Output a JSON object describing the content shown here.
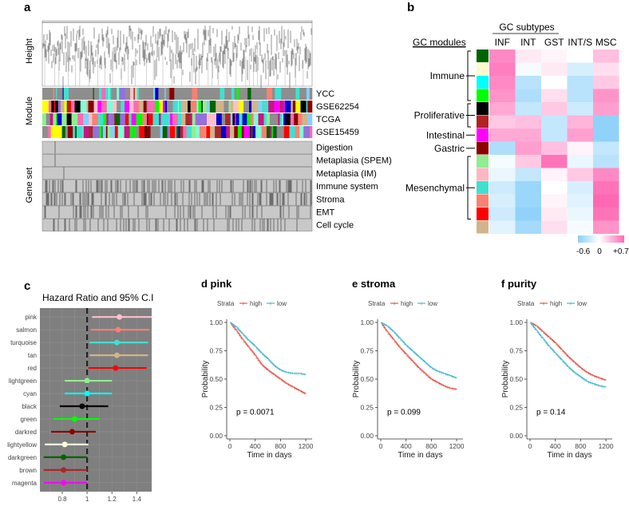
{
  "panels": {
    "a": "a",
    "b": "b",
    "c": "c"
  },
  "panel_a": {
    "height_label": "Height",
    "module_label": "Module",
    "geneset_label": "Gene set",
    "module_rows": [
      "YCC",
      "GSE62254",
      "TCGA",
      "GSE15459"
    ],
    "geneset_rows": [
      "Digestion",
      "Metaplasia (SPEM)",
      "Metaplasia (IM)",
      "Immune system",
      "Stroma",
      "EMT",
      "Cell cycle"
    ],
    "palette": [
      "#8e8e8e",
      "#40e0d0",
      "#ff69b4",
      "#ffc0cb",
      "#c71585",
      "#ff0000",
      "#0000cd",
      "#8b0000",
      "#00ff00",
      "#ffff00",
      "#006400",
      "#000000",
      "#ff00ff",
      "#a52a2a",
      "#87cefa",
      "#d2b48c",
      "#fa8072",
      "#90ee90",
      "#9370db",
      "#7fffd4"
    ]
  },
  "panel_b": {
    "title": "GC subtypes",
    "row_title": "GC modules",
    "columns": [
      "INF",
      "INT",
      "GST",
      "INT/S",
      "MSC"
    ],
    "groups": [
      {
        "label": "Immune",
        "rows": [
          0,
          3
        ]
      },
      {
        "label": "Proliferative",
        "rows": [
          4,
          5
        ]
      },
      {
        "label": "Intestinal",
        "rows": [
          6,
          6
        ]
      },
      {
        "label": "Gastric",
        "rows": [
          7,
          7
        ]
      },
      {
        "label": "Mesenchymal",
        "rows": [
          8,
          12
        ]
      }
    ],
    "module_colors": [
      "#006400",
      "#fffacd",
      "#00ffff",
      "#00ff00",
      "#000000",
      "#b22222",
      "#ff00ff",
      "#8b0000",
      "#90ee90",
      "#ffb6c1",
      "#40e0d0",
      "#fa8072",
      "#ff0000",
      "#d2b48c"
    ],
    "legend_labels": [
      "-0.6",
      "0",
      "+0.7"
    ],
    "legend_colors": {
      "low": "#87cefa",
      "mid": "#ffffff",
      "high": "#ff69b4"
    }
  },
  "chart_data": [
    {
      "type": "heatmap",
      "panel": "b",
      "title": "GC subtypes",
      "columns": [
        "INF",
        "INT",
        "GST",
        "INT/S",
        "MSC"
      ],
      "values": [
        [
          0.55,
          0.1,
          0.05,
          0.0,
          0.3
        ],
        [
          0.6,
          -0.05,
          0.1,
          -0.2,
          0.15
        ],
        [
          0.55,
          -0.35,
          0.0,
          -0.35,
          0.25
        ],
        [
          0.5,
          -0.4,
          0.15,
          -0.35,
          0.5
        ],
        [
          0.4,
          -0.3,
          0.25,
          -0.25,
          0.45
        ],
        [
          0.25,
          0.3,
          -0.3,
          0.35,
          -0.55
        ],
        [
          0.4,
          0.4,
          -0.3,
          0.45,
          -0.55
        ],
        [
          -0.4,
          0.45,
          0.3,
          0.05,
          -0.3
        ],
        [
          -0.05,
          0.25,
          0.65,
          -0.1,
          -0.35
        ],
        [
          -0.1,
          -0.3,
          0.05,
          0.25,
          0.55
        ],
        [
          -0.25,
          -0.5,
          0.0,
          -0.2,
          0.65
        ],
        [
          -0.2,
          -0.5,
          0.05,
          -0.15,
          0.7
        ],
        [
          -0.25,
          -0.55,
          0.1,
          -0.1,
          0.65
        ],
        [
          -0.15,
          -0.45,
          0.15,
          -0.05,
          0.5
        ]
      ],
      "vmin": -0.6,
      "vmax": 0.7
    },
    {
      "type": "scatter",
      "panel": "c",
      "title": "Hazard Ratio and 95% C.I",
      "categories": [
        "pink",
        "salmon",
        "turquoise",
        "tan",
        "red",
        "lightgreen",
        "cyan",
        "black",
        "green",
        "darkred",
        "lightyellow",
        "darkgreen",
        "brown",
        "magenta"
      ],
      "colors": [
        "#ffc0cb",
        "#fa8072",
        "#40e0d0",
        "#d2b48c",
        "#ff0000",
        "#90ee90",
        "#00ffff",
        "#000000",
        "#00ff00",
        "#8b0000",
        "#ffffe0",
        "#006400",
        "#a52a2a",
        "#ff00ff"
      ],
      "hr": [
        1.26,
        1.25,
        1.24,
        1.24,
        1.23,
        1.0,
        1.0,
        0.96,
        0.9,
        0.88,
        0.82,
        0.81,
        0.81,
        0.81
      ],
      "lower": [
        1.04,
        1.03,
        1.02,
        1.02,
        1.01,
        0.82,
        0.82,
        0.78,
        0.73,
        0.71,
        0.66,
        0.65,
        0.65,
        0.65
      ],
      "upper": [
        1.52,
        1.5,
        1.49,
        1.49,
        1.48,
        1.2,
        1.2,
        1.17,
        1.1,
        1.07,
        1.01,
        1.0,
        1.0,
        1.0
      ],
      "xticks": [
        0.8,
        1.0,
        1.2,
        1.4
      ],
      "xlim": [
        0.62,
        1.52
      ],
      "reference": 1.0
    },
    {
      "type": "line",
      "panel": "d",
      "title": "d pink",
      "legend_title": "Strata",
      "series": [
        {
          "name": "high",
          "color": "#e8594a",
          "x": [
            0,
            100,
            200,
            300,
            400,
            500,
            600,
            700,
            800,
            900,
            1000,
            1100,
            1200
          ],
          "y": [
            1.0,
            0.93,
            0.85,
            0.78,
            0.71,
            0.63,
            0.58,
            0.54,
            0.5,
            0.46,
            0.43,
            0.4,
            0.37
          ]
        },
        {
          "name": "low",
          "color": "#4ab9d1",
          "x": [
            0,
            100,
            200,
            300,
            400,
            500,
            600,
            700,
            800,
            900,
            1000,
            1100,
            1200
          ],
          "y": [
            1.0,
            0.96,
            0.9,
            0.84,
            0.79,
            0.73,
            0.68,
            0.62,
            0.58,
            0.56,
            0.55,
            0.55,
            0.54
          ]
        }
      ],
      "annotation": "p = 0.0071",
      "xlabel": "Time in days",
      "ylabel": "Probability",
      "xticks": [
        0,
        400,
        800,
        1200
      ],
      "yticks": [
        "0.00",
        "0.25",
        "0.50",
        "0.75",
        "1.00"
      ],
      "xlim": [
        0,
        1250
      ],
      "ylim": [
        0,
        1
      ]
    },
    {
      "type": "line",
      "panel": "e",
      "title": "e stroma",
      "legend_title": "Strata",
      "series": [
        {
          "name": "high",
          "color": "#e8594a",
          "x": [
            0,
            100,
            200,
            300,
            400,
            500,
            600,
            700,
            800,
            900,
            1000,
            1100,
            1200
          ],
          "y": [
            1.0,
            0.92,
            0.85,
            0.78,
            0.72,
            0.66,
            0.6,
            0.55,
            0.5,
            0.47,
            0.44,
            0.42,
            0.41
          ]
        },
        {
          "name": "low",
          "color": "#4ab9d1",
          "x": [
            0,
            100,
            200,
            300,
            400,
            500,
            600,
            700,
            800,
            900,
            1000,
            1100,
            1200
          ],
          "y": [
            1.0,
            0.97,
            0.92,
            0.86,
            0.8,
            0.75,
            0.7,
            0.65,
            0.6,
            0.57,
            0.55,
            0.53,
            0.51
          ]
        }
      ],
      "annotation": "p = 0.099",
      "xlabel": "Time in days",
      "ylabel": "Probability",
      "xticks": [
        0,
        400,
        800,
        1200
      ],
      "yticks": [
        "0.00",
        "0.25",
        "0.50",
        "0.75",
        "1.00"
      ],
      "xlim": [
        0,
        1250
      ],
      "ylim": [
        0,
        1
      ]
    },
    {
      "type": "line",
      "panel": "f",
      "title": "f purity",
      "legend_title": "Strata",
      "series": [
        {
          "name": "high",
          "color": "#e8594a",
          "x": [
            0,
            100,
            200,
            300,
            400,
            500,
            600,
            700,
            800,
            900,
            1000,
            1100,
            1200
          ],
          "y": [
            1.0,
            0.97,
            0.92,
            0.87,
            0.82,
            0.76,
            0.7,
            0.65,
            0.6,
            0.56,
            0.53,
            0.51,
            0.49
          ]
        },
        {
          "name": "low",
          "color": "#4ab9d1",
          "x": [
            0,
            100,
            200,
            300,
            400,
            500,
            600,
            700,
            800,
            900,
            1000,
            1100,
            1200
          ],
          "y": [
            1.0,
            0.93,
            0.86,
            0.79,
            0.73,
            0.67,
            0.61,
            0.56,
            0.52,
            0.48,
            0.46,
            0.44,
            0.43
          ]
        }
      ],
      "annotation": "p = 0.14",
      "xlabel": "Time in days",
      "ylabel": "Probability",
      "xticks": [
        0,
        400,
        800,
        1200
      ],
      "yticks": [
        "0.00",
        "0.25",
        "0.50",
        "0.75",
        "1.00"
      ],
      "xlim": [
        0,
        1250
      ],
      "ylim": [
        0,
        1
      ]
    }
  ]
}
